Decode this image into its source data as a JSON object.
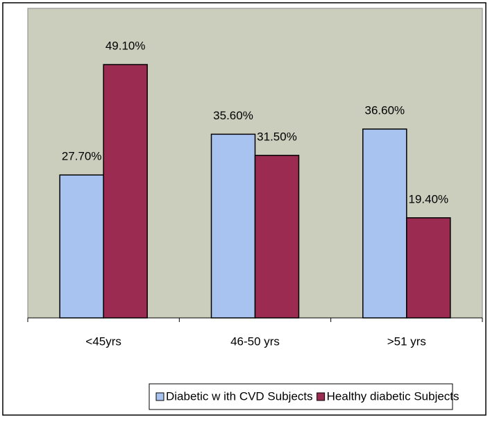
{
  "chart_data": {
    "type": "bar",
    "categories": [
      "<45yrs",
      "46-50 yrs",
      ">51 yrs"
    ],
    "series": [
      {
        "name": "Diabetic w ith CVD Subjects",
        "color": "#a8c3f0",
        "values": [
          27.7,
          35.6,
          36.6
        ],
        "value_labels": [
          "27.70%",
          "35.60%",
          "36.60%"
        ]
      },
      {
        "name": "Healthy diabetic Subjects",
        "color": "#9c2b52",
        "values": [
          49.1,
          31.5,
          19.4
        ],
        "value_labels": [
          "49.10%",
          "31.50%",
          "19.40%"
        ]
      }
    ],
    "ylim": [
      0,
      60
    ]
  }
}
